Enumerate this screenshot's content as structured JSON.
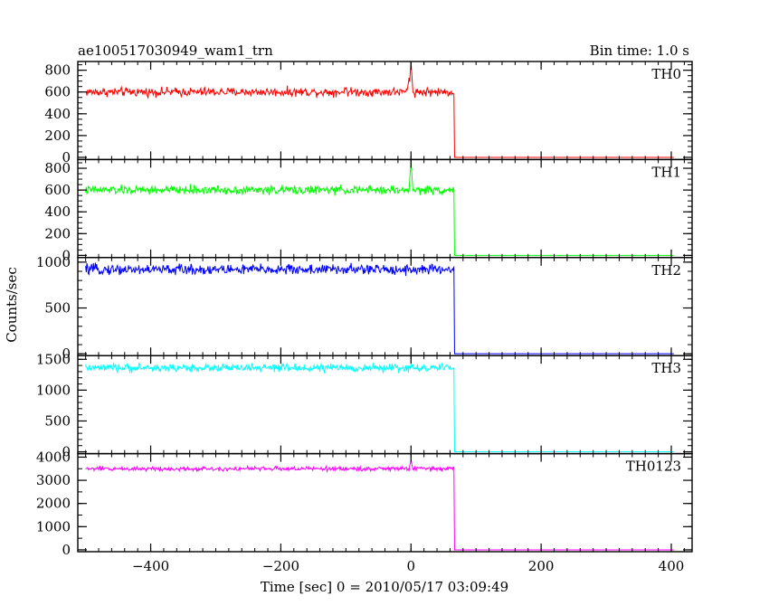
{
  "header": {
    "title": "ae100517030949_wam1_trn",
    "bin_time": "Bin time: 1.0 s"
  },
  "axes": {
    "xlabel": "Time [sec] 0 = 2010/05/17 03:09:49",
    "ylabel": "Counts/sec"
  },
  "chart_data": {
    "type": "line",
    "shared_x": {
      "range": [
        -512,
        432
      ],
      "ticks": [
        -400,
        -200,
        0,
        200,
        400
      ],
      "tick_labels": [
        "−400",
        "−200",
        "0",
        "200",
        "400"
      ],
      "minor_step": 20
    },
    "panels": [
      {
        "name": "TH0",
        "color": "#ff0000",
        "ylim": [
          -20,
          880
        ],
        "yticks": [
          0,
          200,
          400,
          600,
          800
        ],
        "ytick_labels": [
          "0",
          "200",
          "400",
          "600",
          "800"
        ],
        "minor_step": 50,
        "mean": 600,
        "noise": 25,
        "drop_time": 66,
        "end_time": 404,
        "after_value": 0,
        "features": [
          {
            "t": -100,
            "value": 640
          },
          {
            "t": -3,
            "value": 730
          },
          {
            "t": 0,
            "value": 880
          }
        ]
      },
      {
        "name": "TH1",
        "color": "#00ff00",
        "ylim": [
          -20,
          880
        ],
        "yticks": [
          0,
          200,
          400,
          600,
          800
        ],
        "ytick_labels": [
          "0",
          "200",
          "400",
          "600",
          "800"
        ],
        "minor_step": 50,
        "mean": 600,
        "noise": 25,
        "drop_time": 66,
        "end_time": 404,
        "after_value": 0,
        "features": [
          {
            "t": 0,
            "value": 860
          }
        ]
      },
      {
        "name": "TH2",
        "color": "#0000ff",
        "ylim": [
          -20,
          1050
        ],
        "yticks": [
          0,
          500,
          1000
        ],
        "ytick_labels": [
          "0",
          "500",
          "1000"
        ],
        "minor_step": 100,
        "mean": 920,
        "noise": 35,
        "drop_time": 66,
        "end_time": 404,
        "after_value": 0,
        "features": []
      },
      {
        "name": "TH3",
        "color": "#00ffff",
        "ylim": [
          -30,
          1560
        ],
        "yticks": [
          0,
          500,
          1000,
          1500
        ],
        "ytick_labels": [
          "0",
          "500",
          "1000",
          "1500"
        ],
        "minor_step": 100,
        "mean": 1360,
        "noise": 40,
        "drop_time": 66,
        "end_time": 404,
        "after_value": 0,
        "features": []
      },
      {
        "name": "TH0123",
        "color": "#ff00ff",
        "ylim": [
          -80,
          4150
        ],
        "yticks": [
          0,
          1000,
          2000,
          3000,
          4000
        ],
        "ytick_labels": [
          "0",
          "1000",
          "2000",
          "3000",
          "4000"
        ],
        "minor_step": 500,
        "mean": 3500,
        "noise": 60,
        "drop_time": 66,
        "end_time": 404,
        "after_value": 0,
        "features": [
          {
            "t": 0,
            "value": 3850
          }
        ]
      }
    ]
  }
}
